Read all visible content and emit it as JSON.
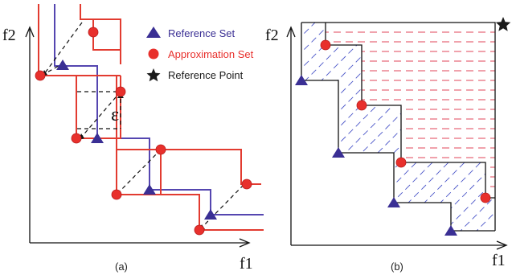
{
  "panel_a": {
    "y_axis_label": "f2",
    "x_axis_label": "f1",
    "caption": "(a)",
    "epsilon_label": "ε",
    "legend": [
      {
        "label": "Reference Set",
        "marker": "triangle",
        "color": "#3a2f94"
      },
      {
        "label": "Approximation Set",
        "marker": "circle",
        "color": "#e8302c"
      },
      {
        "label": "Reference Point",
        "marker": "star",
        "color": "#1a1a1a"
      }
    ]
  },
  "panel_b": {
    "y_axis_label": "f2",
    "x_axis_label": "f1",
    "caption": "(b)"
  },
  "colors": {
    "reference": "#3a2f94",
    "approximation": "#e8302c",
    "reference_line": "#5546b0",
    "approximation_line": "#e23b30",
    "hatch_blue": "#4a55c8",
    "hatch_red": "#e0465a",
    "reference_point": "#1a1a1a"
  }
}
